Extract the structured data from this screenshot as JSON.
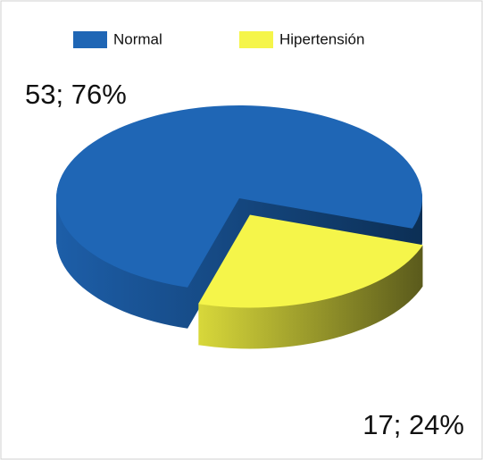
{
  "chart_data": {
    "type": "pie",
    "categories": [
      "Normal",
      "Hipertensión"
    ],
    "values": [
      53,
      17
    ],
    "value_labels": [
      "53; 76%",
      "17; 24%"
    ],
    "colors": [
      "#1f66b5",
      "#f5f54a"
    ],
    "legend": "top"
  }
}
